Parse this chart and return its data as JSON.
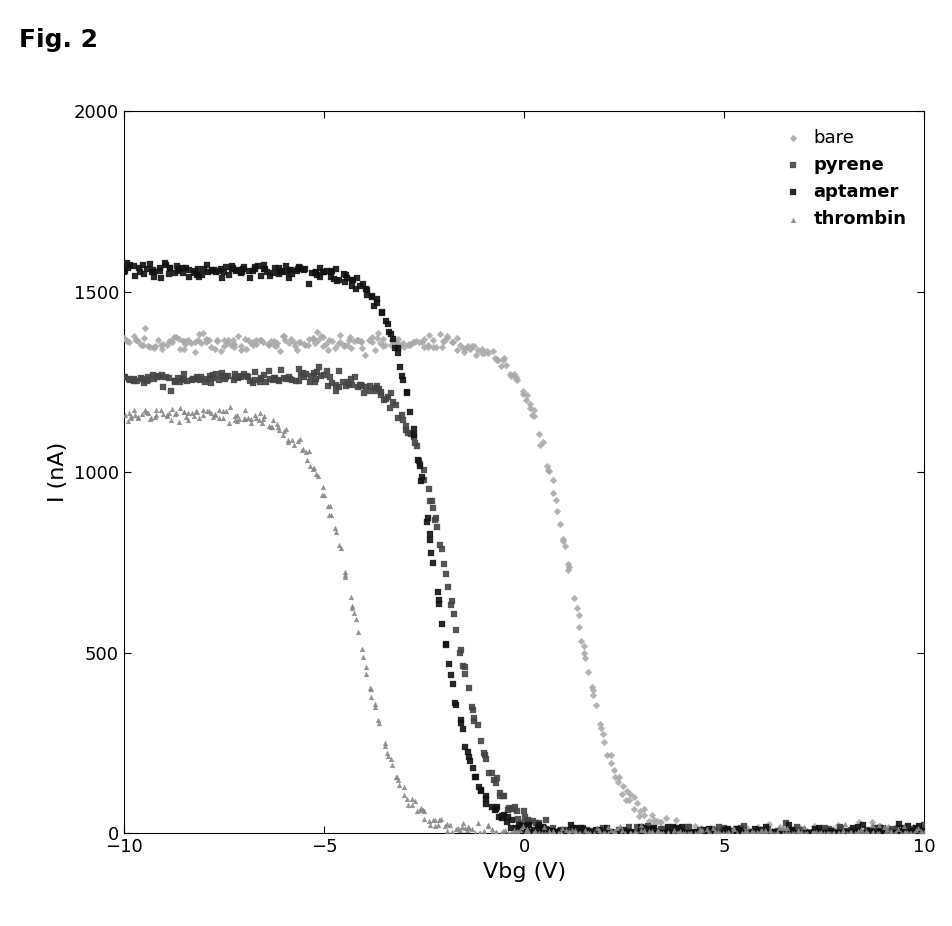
{
  "xlabel": "Vbg (V)",
  "ylabel": "I (nA)",
  "xlim": [
    -10,
    10
  ],
  "ylim": [
    0,
    2000
  ],
  "xticks": [
    -10,
    -5,
    0,
    5,
    10
  ],
  "yticks": [
    0,
    500,
    1000,
    1500,
    2000
  ],
  "series": [
    {
      "label": "bare",
      "color": "#aaaaaa",
      "marker": "D",
      "markersize": 3.5,
      "threshold": 1.2,
      "i_max": 1360,
      "slope": 1.8,
      "noise": 12,
      "label_bold": false
    },
    {
      "label": "pyrene",
      "color": "#444444",
      "marker": "s",
      "markersize": 4,
      "threshold": -1.8,
      "i_max": 1260,
      "slope": 1.9,
      "noise": 10,
      "label_bold": true
    },
    {
      "label": "aptamer",
      "color": "#111111",
      "marker": "s",
      "markersize": 4,
      "threshold": -2.3,
      "i_max": 1560,
      "slope": 2.0,
      "noise": 10,
      "label_bold": true
    },
    {
      "label": "thrombin",
      "color": "#888888",
      "marker": "^",
      "markersize": 3.5,
      "threshold": -4.2,
      "i_max": 1160,
      "slope": 1.8,
      "noise": 10,
      "label_bold": true
    }
  ],
  "fig_label": "Fig. 2",
  "fig_label_fontsize": 18,
  "fig_label_bold": true,
  "figwidth": 9.53,
  "figheight": 9.26,
  "dpi": 100
}
